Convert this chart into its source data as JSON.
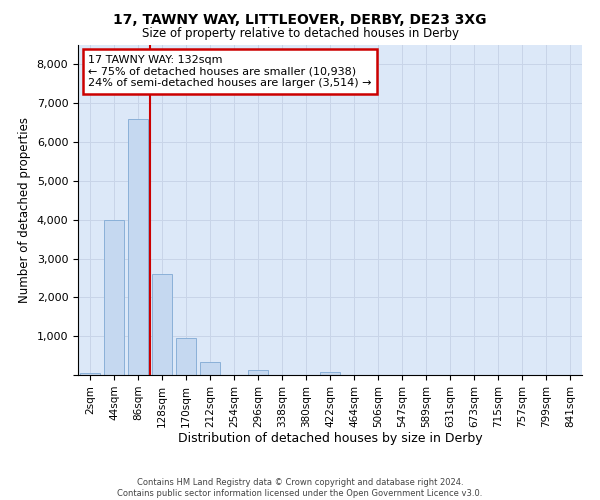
{
  "title1": "17, TAWNY WAY, LITTLEOVER, DERBY, DE23 3XG",
  "title2": "Size of property relative to detached houses in Derby",
  "xlabel": "Distribution of detached houses by size in Derby",
  "ylabel": "Number of detached properties",
  "categories": [
    "2sqm",
    "44sqm",
    "86sqm",
    "128sqm",
    "170sqm",
    "212sqm",
    "254sqm",
    "296sqm",
    "338sqm",
    "380sqm",
    "422sqm",
    "464sqm",
    "506sqm",
    "547sqm",
    "589sqm",
    "631sqm",
    "673sqm",
    "715sqm",
    "757sqm",
    "799sqm",
    "841sqm"
  ],
  "bar_values": [
    50,
    4000,
    6600,
    2600,
    950,
    330,
    0,
    130,
    0,
    0,
    75,
    0,
    0,
    0,
    0,
    0,
    0,
    0,
    0,
    0,
    0
  ],
  "bar_color": "#c5d8f0",
  "bar_edgecolor": "#8ab0d8",
  "vline_color": "#cc0000",
  "vline_x": 3,
  "annotation_title": "17 TAWNY WAY: 132sqm",
  "annotation_line1": "← 75% of detached houses are smaller (10,938)",
  "annotation_line2": "24% of semi-detached houses are larger (3,514) →",
  "annotation_box_color": "#ffffff",
  "annotation_box_edgecolor": "#cc0000",
  "ylim": [
    0,
    8500
  ],
  "yticks": [
    0,
    1000,
    2000,
    3000,
    4000,
    5000,
    6000,
    7000,
    8000
  ],
  "grid_color": "#c8d4e8",
  "background_color": "#dce8f8",
  "footer1": "Contains HM Land Registry data © Crown copyright and database right 2024.",
  "footer2": "Contains public sector information licensed under the Open Government Licence v3.0."
}
